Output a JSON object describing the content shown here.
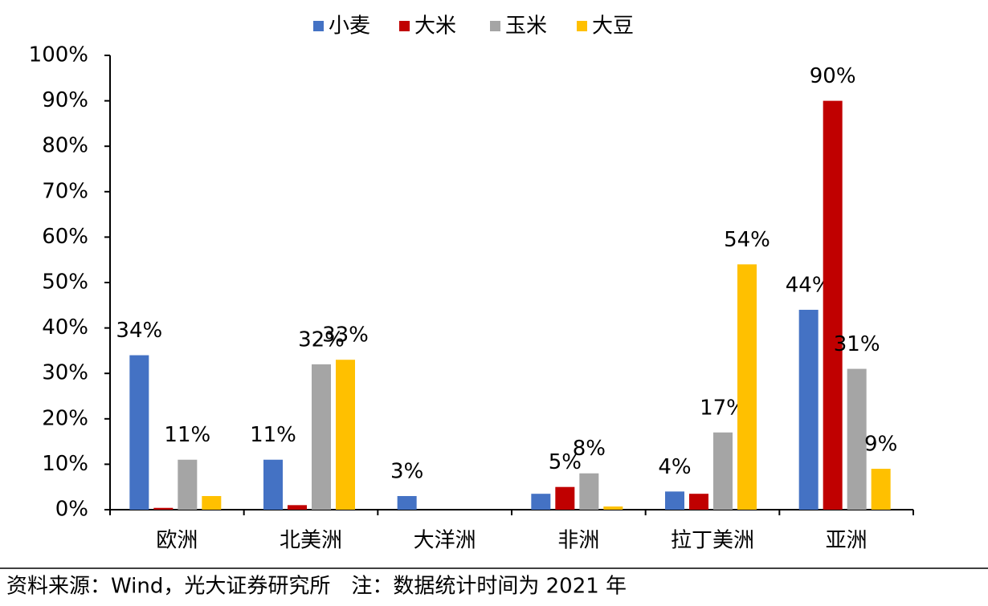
{
  "chart_data": {
    "type": "bar",
    "categories": [
      "欧洲",
      "北美洲",
      "大洋洲",
      "非洲",
      "拉丁美洲",
      "亚洲"
    ],
    "series": [
      {
        "name": "小麦",
        "color": "#4472c4",
        "values": [
          34,
          11,
          3,
          3.5,
          4,
          44
        ],
        "value_labels": [
          "34%",
          "11%",
          "3%",
          null,
          "4%",
          "44%"
        ]
      },
      {
        "name": "大米",
        "color": "#c00000",
        "values": [
          0.4,
          1,
          0,
          5,
          3.5,
          90
        ],
        "value_labels": [
          null,
          null,
          null,
          "5%",
          null,
          "90%"
        ]
      },
      {
        "name": "玉米",
        "color": "#a5a5a5",
        "values": [
          11,
          32,
          0,
          8,
          17,
          31
        ],
        "value_labels": [
          "11%",
          "32%",
          null,
          "8%",
          "17%",
          "31%"
        ]
      },
      {
        "name": "大豆",
        "color": "#ffc000",
        "values": [
          3,
          33,
          0,
          0.7,
          54,
          9
        ],
        "value_labels": [
          null,
          "33%",
          null,
          null,
          "54%",
          "9%"
        ]
      }
    ],
    "ylim": [
      0,
      100
    ],
    "yticks": [
      {
        "value": 0,
        "label": "0%"
      },
      {
        "value": 10,
        "label": "10%"
      },
      {
        "value": 20,
        "label": "20%"
      },
      {
        "value": 30,
        "label": "30%"
      },
      {
        "value": 40,
        "label": "40%"
      },
      {
        "value": 50,
        "label": "50%"
      },
      {
        "value": 60,
        "label": "60%"
      },
      {
        "value": 70,
        "label": "70%"
      },
      {
        "value": 80,
        "label": "80%"
      },
      {
        "value": 90,
        "label": "90%"
      },
      {
        "value": 100,
        "label": "100%"
      }
    ],
    "legend": "top",
    "note": "资料来源：Wind，光大证券研究所　注：数据统计时间为 2021 年"
  }
}
